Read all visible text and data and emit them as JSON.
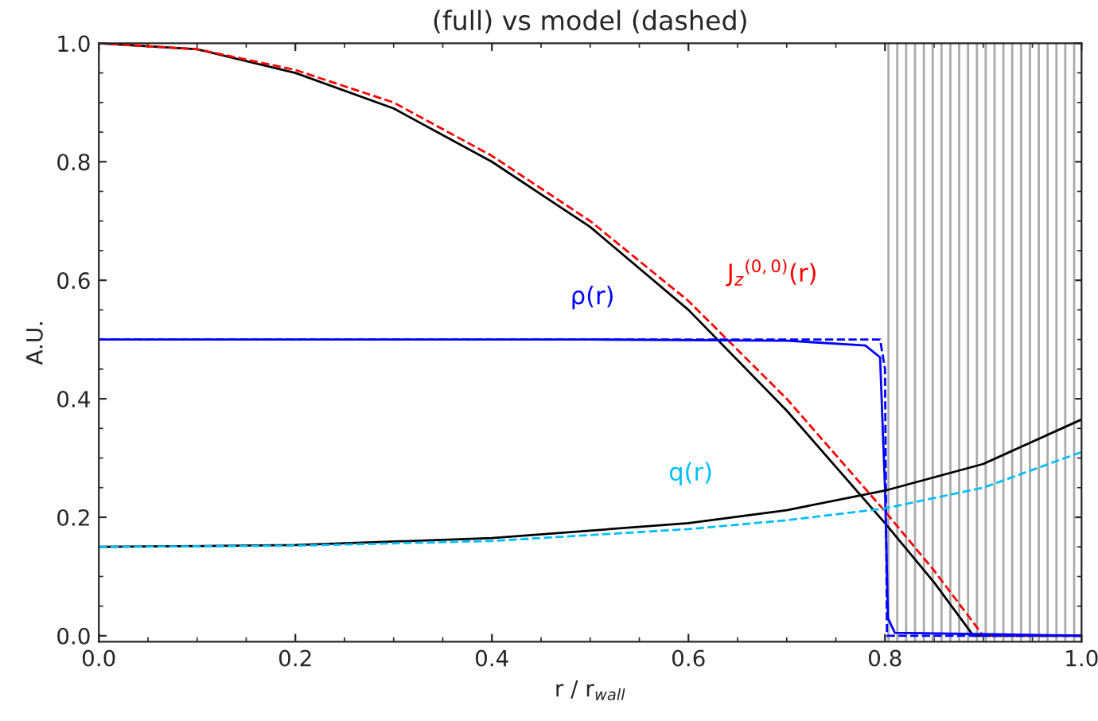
{
  "chart_data": {
    "type": "line",
    "title": "(full) vs model (dashed)",
    "xlabel": "r / r$_{wall}$",
    "ylabel": "A.U.",
    "xlim": [
      0.0,
      1.0
    ],
    "ylim": [
      -0.01,
      1.0
    ],
    "xticks": [
      {
        "value": 0.0,
        "label": "0.0"
      },
      0.2,
      0.4,
      0.6,
      0.8,
      {
        "value": 1.0,
        "label": "1.0"
      }
    ],
    "yticks": [
      {
        "value": 0.0,
        "label": "0.0"
      },
      0.2,
      0.4,
      0.6,
      0.8,
      {
        "value": 1.0,
        "label": "1.0"
      }
    ],
    "grid": false,
    "legend": false,
    "bands": [
      {
        "axis": "x",
        "from": 0.8,
        "to": 1.0,
        "color": "#aaaaaa"
      }
    ],
    "series": [
      {
        "color": "#000000",
        "line_style": "solid",
        "x": [
          0,
          0.1,
          0.2,
          0.3,
          0.4,
          0.5,
          0.6,
          0.7,
          0.8,
          0.85,
          0.89,
          0.9,
          1.0
        ],
        "values": [
          1.0,
          0.99,
          0.95,
          0.89,
          0.8,
          0.69,
          0.55,
          0.38,
          0.19,
          0.09,
          0.0,
          0.0,
          0.0
        ]
      },
      {
        "name": "J$_{z}$$^{(0,0)}$(r)",
        "color": "#ff0000",
        "line_style": "dashed",
        "x": [
          0,
          0.1,
          0.2,
          0.3,
          0.4,
          0.5,
          0.6,
          0.7,
          0.8,
          0.85,
          0.9,
          1.0
        ],
        "values": [
          1.0,
          0.99,
          0.955,
          0.9,
          0.81,
          0.7,
          0.565,
          0.4,
          0.21,
          0.11,
          0.0,
          0.0
        ]
      },
      {
        "name": "ρ(r)",
        "color": "#0000ff",
        "line_style": "solid",
        "x": [
          0,
          0.5,
          0.7,
          0.78,
          0.795,
          0.8,
          0.803,
          0.81,
          1.0
        ],
        "values": [
          0.5,
          0.5,
          0.498,
          0.49,
          0.47,
          0.25,
          0.03,
          0.005,
          0.0
        ]
      },
      {
        "color": "#0000ff",
        "line_style": "dashed",
        "x": [
          0,
          0.795,
          0.8,
          0.802,
          1.0
        ],
        "values": [
          0.5,
          0.5,
          0.45,
          0.0,
          0.0
        ]
      },
      {
        "color": "#000000",
        "line_style": "solid",
        "x": [
          0,
          0.2,
          0.4,
          0.6,
          0.7,
          0.8,
          0.9,
          1.0
        ],
        "values": [
          0.15,
          0.153,
          0.165,
          0.19,
          0.212,
          0.245,
          0.29,
          0.365
        ]
      },
      {
        "name": "q(r)",
        "color": "#00bfff",
        "line_style": "dashed",
        "x": [
          0,
          0.2,
          0.4,
          0.6,
          0.7,
          0.8,
          0.9,
          1.0
        ],
        "values": [
          0.15,
          0.152,
          0.16,
          0.18,
          0.195,
          0.215,
          0.25,
          0.31
        ]
      }
    ]
  }
}
